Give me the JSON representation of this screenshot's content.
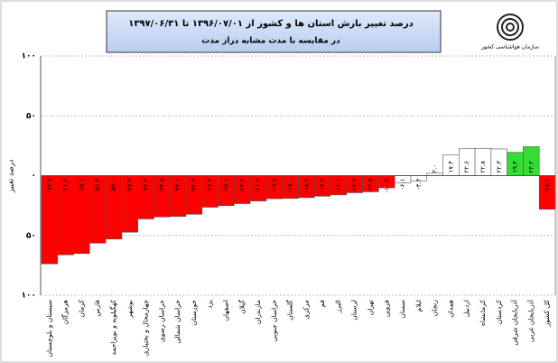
{
  "chart_data": {
    "type": "bar",
    "title": "درصد تغییر بارش استان ها و کشور از ۱۳۹۶/۰۷/۰۱ تا ۱۳۹۷/۰۶/۳۱",
    "subtitle": "در مقایسه با مدت مشابه دراز مدت",
    "y_label": "درصد تغییر",
    "logo_text": "سازمان هواشناسی کشور",
    "categories": [
      "سیستان و بلوچستان",
      "هرمزگان",
      "کرمان",
      "فارس",
      "کهگیلویه و بویراحمد",
      "بوشهر",
      "چهارمحال و بختیاری",
      "خراسان رضوی",
      "خراسان شمالی",
      "خوزستان",
      "یزد",
      "اصفهان",
      "گیلان",
      "مازندران",
      "خراسان جنوبی",
      "گلستان",
      "مرکزی",
      "قم",
      "البرز",
      "لرستان",
      "تهران",
      "قزوین",
      "سمنان",
      "ایلام",
      "زنجان",
      "همدان",
      "اردبیل",
      "کرمانشاه",
      "کردستان",
      "آذربایجان شرقی",
      "آذربایجان غربی",
      "کل کشور"
    ],
    "values": [
      -73.7,
      -66.2,
      -65.1,
      -56.4,
      -53.0,
      -47.3,
      -36.2,
      -34.5,
      -34.1,
      -32.3,
      -26.4,
      -25.1,
      -23.4,
      -21.2,
      -19.3,
      -19.0,
      -18.4,
      -17.2,
      -16.1,
      -14.3,
      -13.5,
      -10.2,
      -6.1,
      -4.3,
      2.0,
      17.4,
      22.6,
      22.8,
      22.3,
      19.4,
      24.2,
      -28.1
    ],
    "value_labels": [
      "-۷۳.۷",
      "-۶۶.۲",
      "-۶۵.۱",
      "-۵۶.۴",
      "-۵۳.۰",
      "-۴۷.۳",
      "-۳۶.۲",
      "-۳۴.۵",
      "-۳۴.۱",
      "-۳۲.۳",
      "-۲۶.۴",
      "-۲۵.۱",
      "-۲۳.۴",
      "-۲۱.۲",
      "-۱۹.۳",
      "-۱۹.۰",
      "-۱۸.۴",
      "-۱۷.۲",
      "-۱۶.۱",
      "-۱۴.۳",
      "-۱۳.۵",
      "-۱۰.۲",
      "-۶.۱",
      "-۴.۳",
      "۲.۰",
      "۱۷.۴",
      "۲۲.۶",
      "۲۲.۸",
      "۲۲.۳",
      "۱۹.۴",
      "۲۴.۲",
      "-۲۸.۱"
    ],
    "colors": [
      "#ff0000",
      "#ff0000",
      "#ff0000",
      "#ff0000",
      "#ff0000",
      "#ff0000",
      "#ff0000",
      "#ff0000",
      "#ff0000",
      "#ff0000",
      "#ff0000",
      "#ff0000",
      "#ff0000",
      "#ff0000",
      "#ff0000",
      "#ff0000",
      "#ff0000",
      "#ff0000",
      "#ff0000",
      "#ff0000",
      "#ff0000",
      "#ff0000",
      "#ffffff",
      "#ffffff",
      "#ffffff",
      "#ffffff",
      "#ffffff",
      "#ffffff",
      "#ffffff",
      "#33dd33",
      "#33dd33",
      "#ff0000"
    ],
    "ylim": [
      -100,
      100
    ],
    "yticks": [
      {
        "value": -100,
        "label": "۱۰۰"
      },
      {
        "value": -50,
        "label": "۵۰"
      },
      {
        "value": 0,
        "label": "۰"
      },
      {
        "value": 50,
        "label": "۵۰"
      },
      {
        "value": 100,
        "label": "۱۰۰"
      }
    ],
    "grid": true
  }
}
